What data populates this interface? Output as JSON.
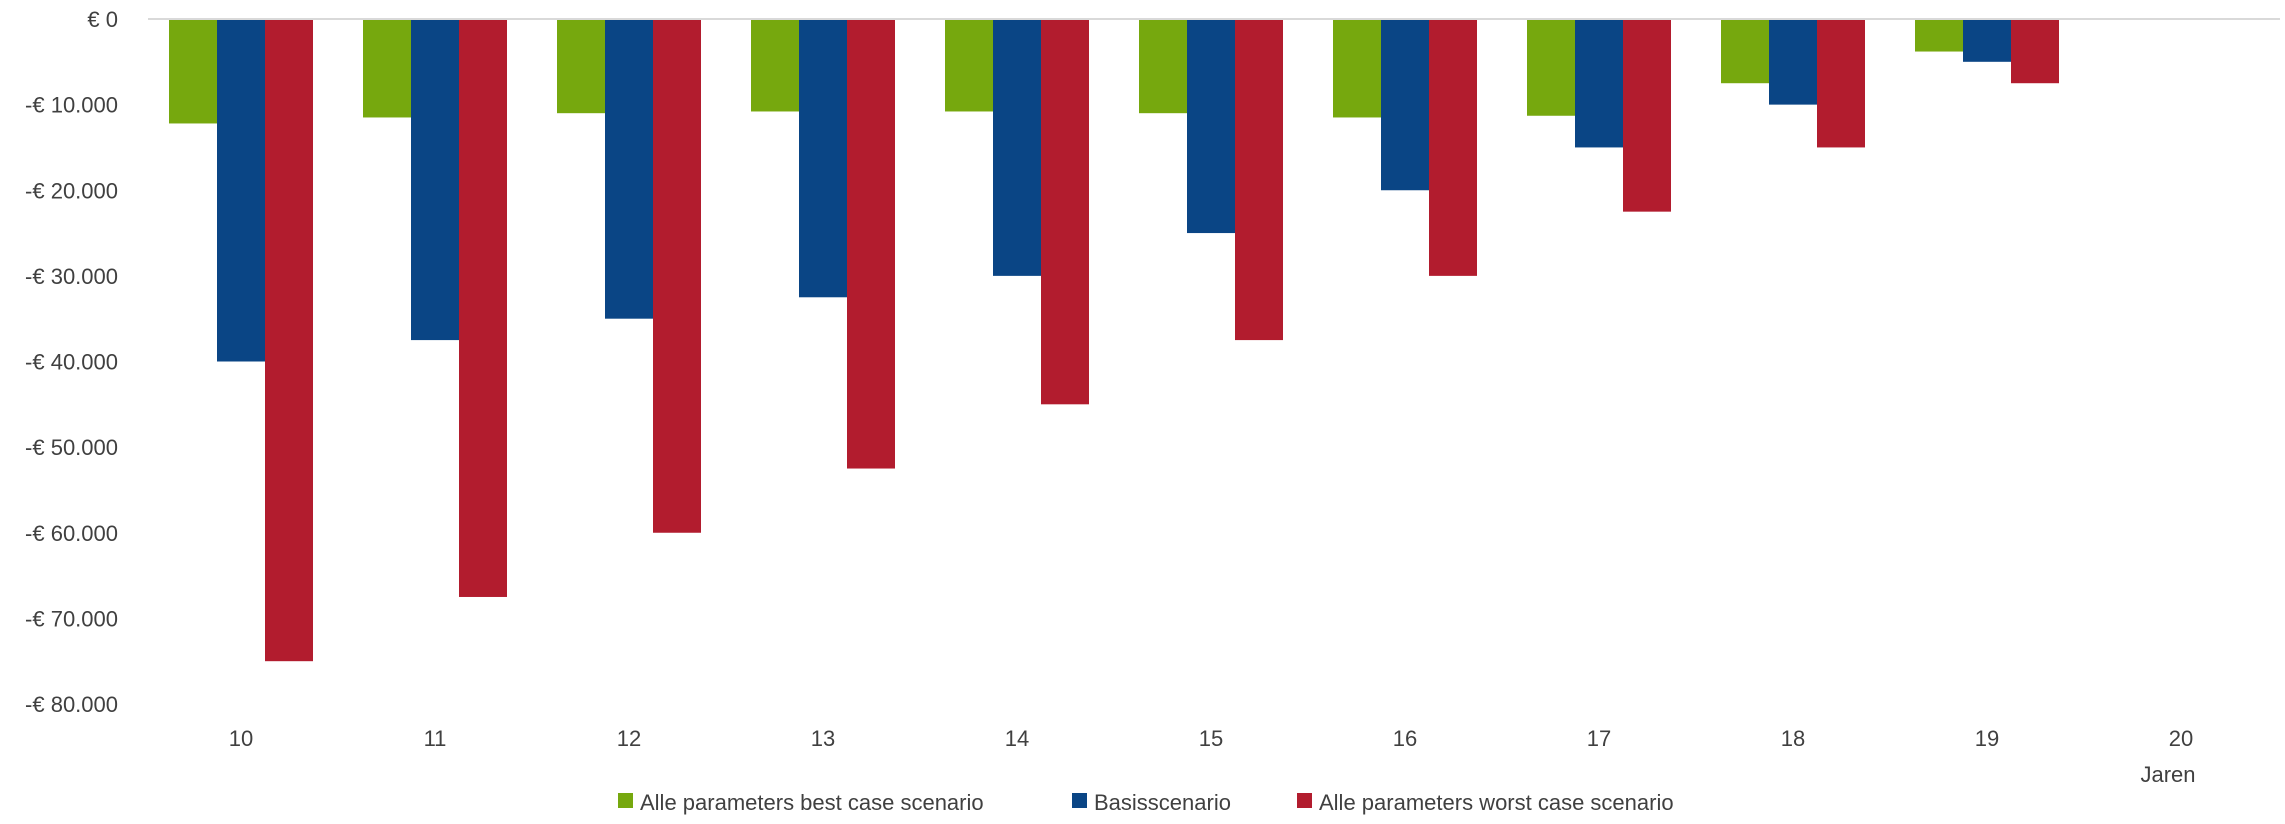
{
  "chart_data": {
    "type": "bar",
    "categories": [
      "10",
      "11",
      "12",
      "13",
      "14",
      "15",
      "16",
      "17",
      "18",
      "19",
      "20"
    ],
    "series": [
      {
        "name": "Alle parameters best case scenario",
        "color": "#76a80e",
        "values": [
          -12200,
          -11500,
          -11000,
          -10800,
          -10800,
          -11000,
          -11500,
          -11300,
          -7500,
          -3800,
          0
        ]
      },
      {
        "name": "Basisscenario",
        "color": "#0a4585",
        "values": [
          -40000,
          -37500,
          -35000,
          -32500,
          -30000,
          -25000,
          -20000,
          -15000,
          -10000,
          -5000,
          0
        ]
      },
      {
        "name": "Alle parameters worst case scenario",
        "color": "#b21c2e",
        "values": [
          -75000,
          -67500,
          -60000,
          -52500,
          -45000,
          -37500,
          -30000,
          -22500,
          -15000,
          -7500,
          0
        ]
      }
    ],
    "xlabel": "Jaren",
    "ylabel": "",
    "ylim": [
      -80000,
      0
    ],
    "yticks": [
      0,
      -10000,
      -20000,
      -30000,
      -40000,
      -50000,
      -60000,
      -70000,
      -80000
    ],
    "ytick_labels": [
      "€ 0",
      "-€ 10.000",
      "-€ 20.000",
      "-€ 30.000",
      "-€ 40.000",
      "-€ 50.000",
      "-€ 60.000",
      "-€ 70.000",
      "-€ 80.000"
    ],
    "legend_position": "bottom-center",
    "grid": false,
    "axis_line_color": "#d9d9d9"
  }
}
